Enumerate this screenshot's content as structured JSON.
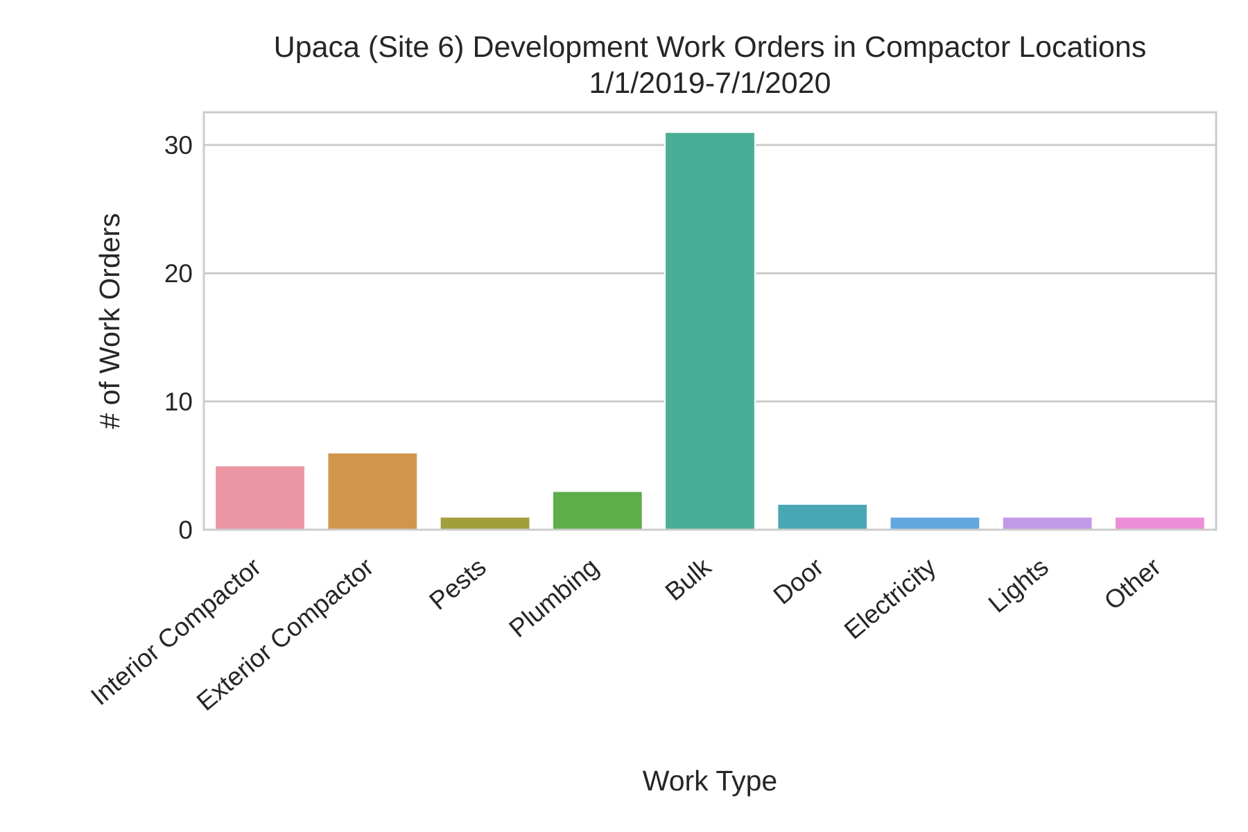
{
  "chart_data": {
    "type": "bar",
    "title": "Upaca (Site 6) Development Work Orders in Compactor Locations",
    "subtitle": "1/1/2019-7/1/2020",
    "xlabel": "Work Type",
    "ylabel": "# of Work Orders",
    "categories": [
      "Interior Compactor",
      "Exterior Compactor",
      "Pests",
      "Plumbing",
      "Bulk",
      "Door",
      "Electricity",
      "Lights",
      "Other"
    ],
    "values": [
      5,
      6,
      1,
      3,
      31,
      2,
      1,
      1,
      1
    ],
    "colors": [
      "#ec96a4",
      "#d1954b",
      "#a19e3c",
      "#5ead48",
      "#4aae96",
      "#4aa8b5",
      "#63a7e0",
      "#c29ae8",
      "#ec8fd6"
    ],
    "ylim": [
      0,
      32.55
    ],
    "yticks": [
      0,
      10,
      20,
      30
    ],
    "grid": true,
    "legend": "none"
  }
}
